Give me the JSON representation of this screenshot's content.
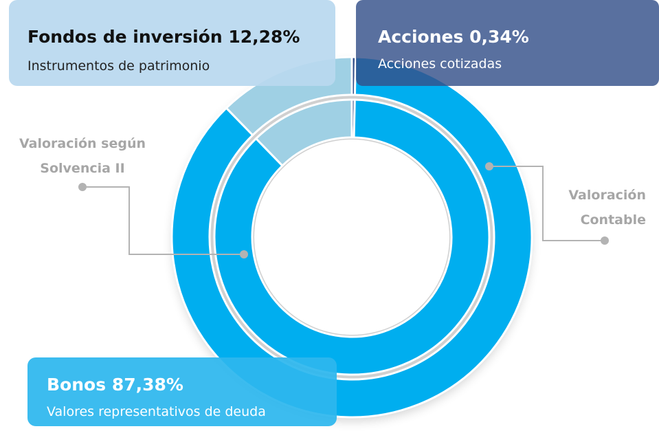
{
  "chart_data": {
    "type": "donut",
    "categories": [
      "Fondos de inversión",
      "Acciones",
      "Bonos"
    ],
    "descriptions": [
      "Instrumentos de patrimonio",
      "Acciones cotizadas",
      "Valores representativos de deuda"
    ],
    "colors": [
      "#9fd0e4",
      "#34508a",
      "#00aeef"
    ],
    "series": [
      {
        "name": "Valoración Contable",
        "values": [
          12.28,
          0.34,
          87.38
        ],
        "value_labels": [
          "12,28%",
          "0,34%",
          "87,38%"
        ]
      },
      {
        "name": "Valoración según Solvencia II",
        "values": [
          12.28,
          0.34,
          87.38
        ]
      }
    ]
  }
}
